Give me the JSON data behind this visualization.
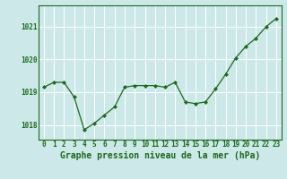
{
  "x": [
    0,
    1,
    2,
    3,
    4,
    5,
    6,
    7,
    8,
    9,
    10,
    11,
    12,
    13,
    14,
    15,
    16,
    17,
    18,
    19,
    20,
    21,
    22,
    23
  ],
  "y": [
    1019.15,
    1019.3,
    1019.3,
    1018.85,
    1017.85,
    1018.05,
    1018.3,
    1018.55,
    1019.15,
    1019.2,
    1019.2,
    1019.2,
    1019.15,
    1019.3,
    1018.7,
    1018.65,
    1018.7,
    1019.1,
    1019.55,
    1020.05,
    1020.4,
    1020.65,
    1021.0,
    1021.25
  ],
  "line_color": "#1a6b1a",
  "marker": "D",
  "marker_size": 2.2,
  "linewidth": 0.9,
  "background_color": "#cce8e8",
  "grid_color": "#aacccc",
  "xlabel": "Graphe pression niveau de la mer (hPa)",
  "xlabel_fontsize": 7.0,
  "ytick_labels": [
    "1018",
    "1019",
    "1020",
    "1021"
  ],
  "ytick_values": [
    1018,
    1019,
    1020,
    1021
  ],
  "ylim": [
    1017.55,
    1021.65
  ],
  "xlim": [
    -0.5,
    23.5
  ],
  "xtick_labels": [
    "0",
    "1",
    "2",
    "3",
    "4",
    "5",
    "6",
    "7",
    "8",
    "9",
    "10",
    "11",
    "12",
    "13",
    "14",
    "15",
    "16",
    "17",
    "18",
    "19",
    "20",
    "21",
    "22",
    "23"
  ],
  "tick_fontsize": 5.5,
  "spine_color": "#1a6b1a"
}
